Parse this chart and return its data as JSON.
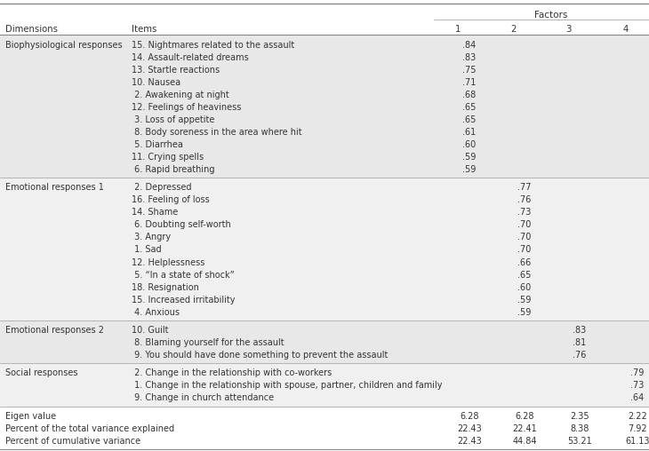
{
  "factor_header": "Factors",
  "sections": [
    {
      "dimension": "Biophysiological responses",
      "bg": "#e8e8e8",
      "items": [
        {
          "text": "15. Nightmares related to the assault",
          "f1": ".84",
          "f2": "",
          "f3": "",
          "f4": ""
        },
        {
          "text": "14. Assault-related dreams",
          "f1": ".83",
          "f2": "",
          "f3": "",
          "f4": ""
        },
        {
          "text": "13. Startle reactions",
          "f1": ".75",
          "f2": "",
          "f3": "",
          "f4": ""
        },
        {
          "text": "10. Nausea",
          "f1": ".71",
          "f2": "",
          "f3": "",
          "f4": ""
        },
        {
          "text": " 2. Awakening at night",
          "f1": ".68",
          "f2": "",
          "f3": "",
          "f4": ""
        },
        {
          "text": "12. Feelings of heaviness",
          "f1": ".65",
          "f2": "",
          "f3": "",
          "f4": ""
        },
        {
          "text": " 3. Loss of appetite",
          "f1": ".65",
          "f2": "",
          "f3": "",
          "f4": ""
        },
        {
          "text": " 8. Body soreness in the area where hit",
          "f1": ".61",
          "f2": "",
          "f3": "",
          "f4": ""
        },
        {
          "text": " 5. Diarrhea",
          "f1": ".60",
          "f2": "",
          "f3": "",
          "f4": ""
        },
        {
          "text": "11. Crying spells",
          "f1": ".59",
          "f2": "",
          "f3": "",
          "f4": ""
        },
        {
          "text": " 6. Rapid breathing",
          "f1": ".59",
          "f2": "",
          "f3": "",
          "f4": ""
        }
      ]
    },
    {
      "dimension": "Emotional responses 1",
      "bg": "#f0f0f0",
      "items": [
        {
          "text": " 2. Depressed",
          "f1": "",
          "f2": ".77",
          "f3": "",
          "f4": ""
        },
        {
          "text": "16. Feeling of loss",
          "f1": "",
          "f2": ".76",
          "f3": "",
          "f4": ""
        },
        {
          "text": "14. Shame",
          "f1": "",
          "f2": ".73",
          "f3": "",
          "f4": ""
        },
        {
          "text": " 6. Doubting self-worth",
          "f1": "",
          "f2": ".70",
          "f3": "",
          "f4": ""
        },
        {
          "text": " 3. Angry",
          "f1": "",
          "f2": ".70",
          "f3": "",
          "f4": ""
        },
        {
          "text": " 1. Sad",
          "f1": "",
          "f2": ".70",
          "f3": "",
          "f4": ""
        },
        {
          "text": "12. Helplessness",
          "f1": "",
          "f2": ".66",
          "f3": "",
          "f4": ""
        },
        {
          "text": " 5. “In a state of shock”",
          "f1": "",
          "f2": ".65",
          "f3": "",
          "f4": ""
        },
        {
          "text": "18. Resignation",
          "f1": "",
          "f2": ".60",
          "f3": "",
          "f4": ""
        },
        {
          "text": "15. Increased irritability",
          "f1": "",
          "f2": ".59",
          "f3": "",
          "f4": ""
        },
        {
          "text": " 4. Anxious",
          "f1": "",
          "f2": ".59",
          "f3": "",
          "f4": ""
        }
      ]
    },
    {
      "dimension": "Emotional responses 2",
      "bg": "#e8e8e8",
      "items": [
        {
          "text": "10. Guilt",
          "f1": "",
          "f2": "",
          "f3": ".83",
          "f4": ""
        },
        {
          "text": " 8. Blaming yourself for the assault",
          "f1": "",
          "f2": "",
          "f3": ".81",
          "f4": ""
        },
        {
          "text": " 9. You should have done something to prevent the assault",
          "f1": "",
          "f2": "",
          "f3": ".76",
          "f4": ""
        }
      ]
    },
    {
      "dimension": "Social responses",
      "bg": "#f0f0f0",
      "items": [
        {
          "text": " 2. Change in the relationship with co-workers",
          "f1": "",
          "f2": "",
          "f3": "",
          "f4": ".79"
        },
        {
          "text": " 1. Change in the relationship with spouse, partner, children and family",
          "f1": "",
          "f2": "",
          "f3": "",
          "f4": ".73"
        },
        {
          "text": " 9. Change in church attendance",
          "f1": "",
          "f2": "",
          "f3": "",
          "f4": ".64"
        }
      ]
    }
  ],
  "footer_rows": [
    {
      "label": "Eigen value",
      "f1": "6.28",
      "f2": "6.28",
      "f3": "2.35",
      "f4": "2.22"
    },
    {
      "label": "Percent of the total variance explained",
      "f1": "22.43",
      "f2": "22.41",
      "f3": "8.38",
      "f4": "7.92"
    },
    {
      "label": "Percent of cumulative variance",
      "f1": "22.43",
      "f2": "44.84",
      "f3": "53.21",
      "f4": "61.13"
    }
  ],
  "font_size": 7.0,
  "bg_white": "#ffffff",
  "bg_gray1": "#e8e8e8",
  "bg_gray2": "#f0f0f0",
  "text_color": "#333333",
  "line_color_heavy": "#888888",
  "line_color_light": "#aaaaaa"
}
